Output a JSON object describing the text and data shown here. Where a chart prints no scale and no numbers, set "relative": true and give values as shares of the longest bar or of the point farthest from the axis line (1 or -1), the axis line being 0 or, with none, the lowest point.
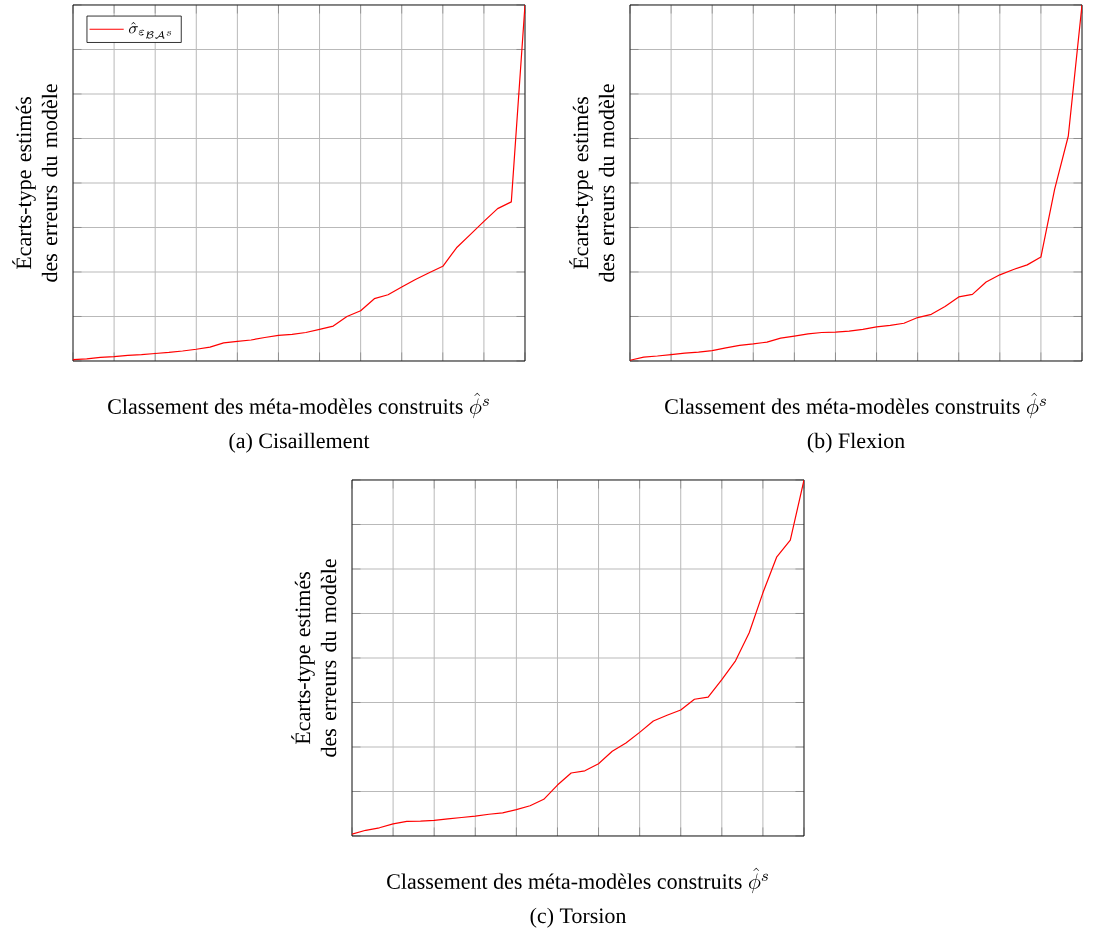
{
  "chart_data": [
    {
      "type": "line",
      "title": "(a) Cisaillement",
      "xlabel": "\\mbox{Classement des méta-modèles construits }\\hat{\\phi}^s",
      "ylabel": "Écarts-type estimés des erreurs du modèle",
      "relative": true,
      "grid": true,
      "legend": "top left",
      "categories": [
        null,
        null,
        null,
        null,
        null,
        null,
        null,
        null,
        null,
        null,
        null,
        null,
        null,
        null,
        null,
        null,
        null,
        null,
        null,
        null,
        null,
        null,
        null,
        null,
        null,
        null,
        null,
        null,
        null,
        null,
        null,
        null,
        null,
        null
      ],
      "series": [
        {
          "name": "\\hat{\\sigma}_{\\varepsilon_{\\mathcal{B}\\mathcal{A}^s}}",
          "color": "#ff0000",
          "values": [
            0.004,
            0.006,
            0.01,
            0.012,
            0.016,
            0.018,
            0.021,
            0.024,
            0.028,
            0.033,
            0.039,
            0.051,
            0.055,
            0.059,
            0.066,
            0.072,
            0.075,
            0.08,
            0.089,
            0.098,
            0.125,
            0.141,
            0.175,
            0.186,
            0.208,
            0.229,
            0.248,
            0.266,
            0.318,
            0.355,
            0.392,
            0.428,
            0.447,
            1
          ]
        }
      ]
    },
    {
      "type": "line",
      "title": "(b) Flexion",
      "xlabel": "\\mbox{Classement des méta-modèles construits }\\hat{\\phi}^s",
      "ylabel": "Écarts-type estimés des erreurs du modèle",
      "relative": true,
      "grid": true,
      "categories": [
        null,
        null,
        null,
        null,
        null,
        null,
        null,
        null,
        null,
        null,
        null,
        null,
        null,
        null,
        null,
        null,
        null,
        null,
        null,
        null,
        null,
        null,
        null,
        null,
        null,
        null,
        null,
        null,
        null,
        null,
        null,
        null,
        null,
        null
      ],
      "series": [
        {
          "color": "#ff0000",
          "values": [
            0.002,
            0.011,
            0.014,
            0.018,
            0.022,
            0.025,
            0.029,
            0.037,
            0.044,
            0.048,
            0.053,
            0.064,
            0.07,
            0.076,
            0.08,
            0.081,
            0.084,
            0.089,
            0.096,
            0.1,
            0.106,
            0.122,
            0.131,
            0.153,
            0.18,
            0.187,
            0.222,
            0.242,
            0.257,
            0.27,
            0.292,
            0.482,
            0.632,
            1
          ]
        }
      ]
    },
    {
      "type": "line",
      "title": "(c) Torsion",
      "xlabel": "\\mbox{Classement des méta-modèles construits }\\hat{\\phi}^s",
      "ylabel": "Écarts-type estimés des erreurs du modèle",
      "relative": true,
      "grid": true,
      "categories": [
        null,
        null,
        null,
        null,
        null,
        null,
        null,
        null,
        null,
        null,
        null,
        null,
        null,
        null,
        null,
        null,
        null,
        null,
        null,
        null,
        null,
        null,
        null,
        null,
        null,
        null,
        null,
        null,
        null,
        null,
        null,
        null,
        null,
        null
      ],
      "series": [
        {
          "color": "#ff0000",
          "values": [
            0.005,
            0.016,
            0.023,
            0.034,
            0.041,
            0.042,
            0.044,
            0.048,
            0.052,
            0.056,
            0.061,
            0.065,
            0.074,
            0.085,
            0.103,
            0.143,
            0.177,
            0.183,
            0.203,
            0.238,
            0.261,
            0.291,
            0.323,
            0.339,
            0.354,
            0.384,
            0.39,
            0.439,
            0.492,
            0.571,
            0.683,
            0.783,
            0.831,
            1
          ]
        }
      ]
    }
  ]
}
